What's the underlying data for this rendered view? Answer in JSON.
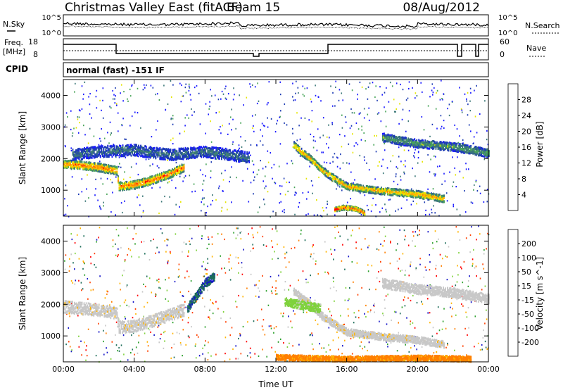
{
  "header": {
    "title": "Christmas Valley East (fitACF)",
    "beam": "Beam 15",
    "date": "08/Aug/2012"
  },
  "ancillary": {
    "nsky_label": "N.Sky",
    "nsearch_label": "N.Search",
    "nsky_ticks": [
      "10^5",
      "10^0"
    ],
    "nsearch_ticks": [
      "10^5",
      "10^0"
    ],
    "freq_label_line1": "Freq.",
    "freq_label_line2": "[MHz]",
    "freq_ticks": [
      "18",
      "8"
    ],
    "nave_label": "Nave",
    "nave_ticks": [
      "60",
      "0"
    ],
    "cpid_label": "CPID",
    "cpid_value": "normal (fast) -151 IF"
  },
  "chart_data": [
    {
      "type": "heatmap",
      "name": "power",
      "ylabel": "Slant Range [km]",
      "xlabel": "Time UT",
      "xlim_hours": [
        0,
        24
      ],
      "ylim": [
        180,
        4500
      ],
      "xticks": [
        "00:00",
        "04:00",
        "08:00",
        "12:00",
        "16:00",
        "20:00",
        "00:00"
      ],
      "yticks": [
        1000,
        2000,
        3000,
        4000
      ],
      "colorbar": {
        "label": "Power [dB]",
        "ticks": [
          "28",
          "24",
          "20",
          "16",
          "12",
          "8",
          "4"
        ],
        "colors": [
          "#ff0000",
          "#ff7f00",
          "#ffb400",
          "#e6e600",
          "#4aa55a",
          "#3c7878",
          "#1e3cb4",
          "#1a1aff"
        ]
      },
      "bands": [
        {
          "t": [
            0.0,
            1.0,
            2.0,
            3.0,
            3.1,
            4.0,
            5.0,
            6.0,
            6.8
          ],
          "r": [
            1850,
            1820,
            1750,
            1650,
            1150,
            1200,
            1350,
            1550,
            1750
          ],
          "width": 260,
          "peak_db": 28
        },
        {
          "t": [
            13.0,
            13.5,
            14.0,
            14.5,
            15.0,
            16.0,
            18.0,
            20.0,
            21.5
          ],
          "r": [
            2450,
            2200,
            2000,
            1700,
            1500,
            1150,
            1000,
            900,
            750
          ],
          "width": 220,
          "peak_db": 24
        },
        {
          "t": [
            0.5,
            2.0,
            4.0,
            6.0,
            8.0,
            10.0,
            10.5
          ],
          "r": [
            2150,
            2250,
            2300,
            2150,
            2250,
            2100,
            2050
          ],
          "width": 350,
          "peak_db": 10
        },
        {
          "t": [
            18.0,
            19.0,
            20.0,
            21.0,
            22.0,
            23.0,
            24.0
          ],
          "r": [
            2700,
            2600,
            2500,
            2450,
            2400,
            2300,
            2200
          ],
          "width": 260,
          "peak_db": 14
        },
        {
          "t": [
            15.3,
            15.8,
            16.5,
            17.0
          ],
          "r": [
            420,
            480,
            440,
            300
          ],
          "width": 140,
          "peak_db": 30
        }
      ]
    },
    {
      "type": "heatmap",
      "name": "velocity",
      "ylabel": "Slant Range [km]",
      "xlabel": "Time UT",
      "xlim_hours": [
        0,
        24
      ],
      "ylim": [
        180,
        4500
      ],
      "xticks": [
        "00:00",
        "04:00",
        "08:00",
        "12:00",
        "16:00",
        "20:00",
        "00:00"
      ],
      "yticks": [
        1000,
        2000,
        3000,
        4000
      ],
      "colorbar": {
        "label": "Velocity [m s^-1]",
        "ticks": [
          "200",
          "100",
          "50",
          "15",
          "-15",
          "-50",
          "-100",
          "-200"
        ],
        "colors": [
          "#1414c8",
          "#1e6e5a",
          "#2ca02c",
          "#7fd23c",
          "#c8c8c8",
          "#ffb400",
          "#ff7f00",
          "#ff4000",
          "#ff0000"
        ]
      },
      "bands": [
        {
          "t": [
            0.0,
            1.0,
            2.0,
            3.0,
            3.1,
            4.0,
            5.0,
            6.0,
            6.8
          ],
          "r": [
            1950,
            1900,
            1850,
            1750,
            1300,
            1350,
            1500,
            1700,
            1850
          ],
          "width": 380,
          "vel": -5
        },
        {
          "t": [
            13.0,
            13.5,
            14.0,
            14.5,
            15.0,
            16.0,
            18.0,
            20.0,
            21.5
          ],
          "r": [
            2450,
            2200,
            2000,
            1700,
            1500,
            1150,
            1000,
            900,
            750
          ],
          "width": 220,
          "vel": -5
        },
        {
          "t": [
            18.0,
            19.0,
            20.0,
            21.0,
            22.0,
            23.0,
            24.0
          ],
          "r": [
            2700,
            2600,
            2500,
            2450,
            2400,
            2300,
            2200
          ],
          "width": 300,
          "vel": 0
        },
        {
          "t": [
            7.0,
            7.5,
            8.0,
            8.5
          ],
          "r": [
            1900,
            2300,
            2700,
            2900
          ],
          "width": 260,
          "vel": 150
        },
        {
          "t": [
            12.5,
            13.5,
            14.5
          ],
          "r": [
            2100,
            2000,
            1900
          ],
          "width": 260,
          "vel": 40
        },
        {
          "t": [
            12.0,
            16.0,
            20.0,
            23.0
          ],
          "r": [
            350,
            300,
            330,
            300
          ],
          "width": 170,
          "vel": -80
        }
      ]
    }
  ]
}
